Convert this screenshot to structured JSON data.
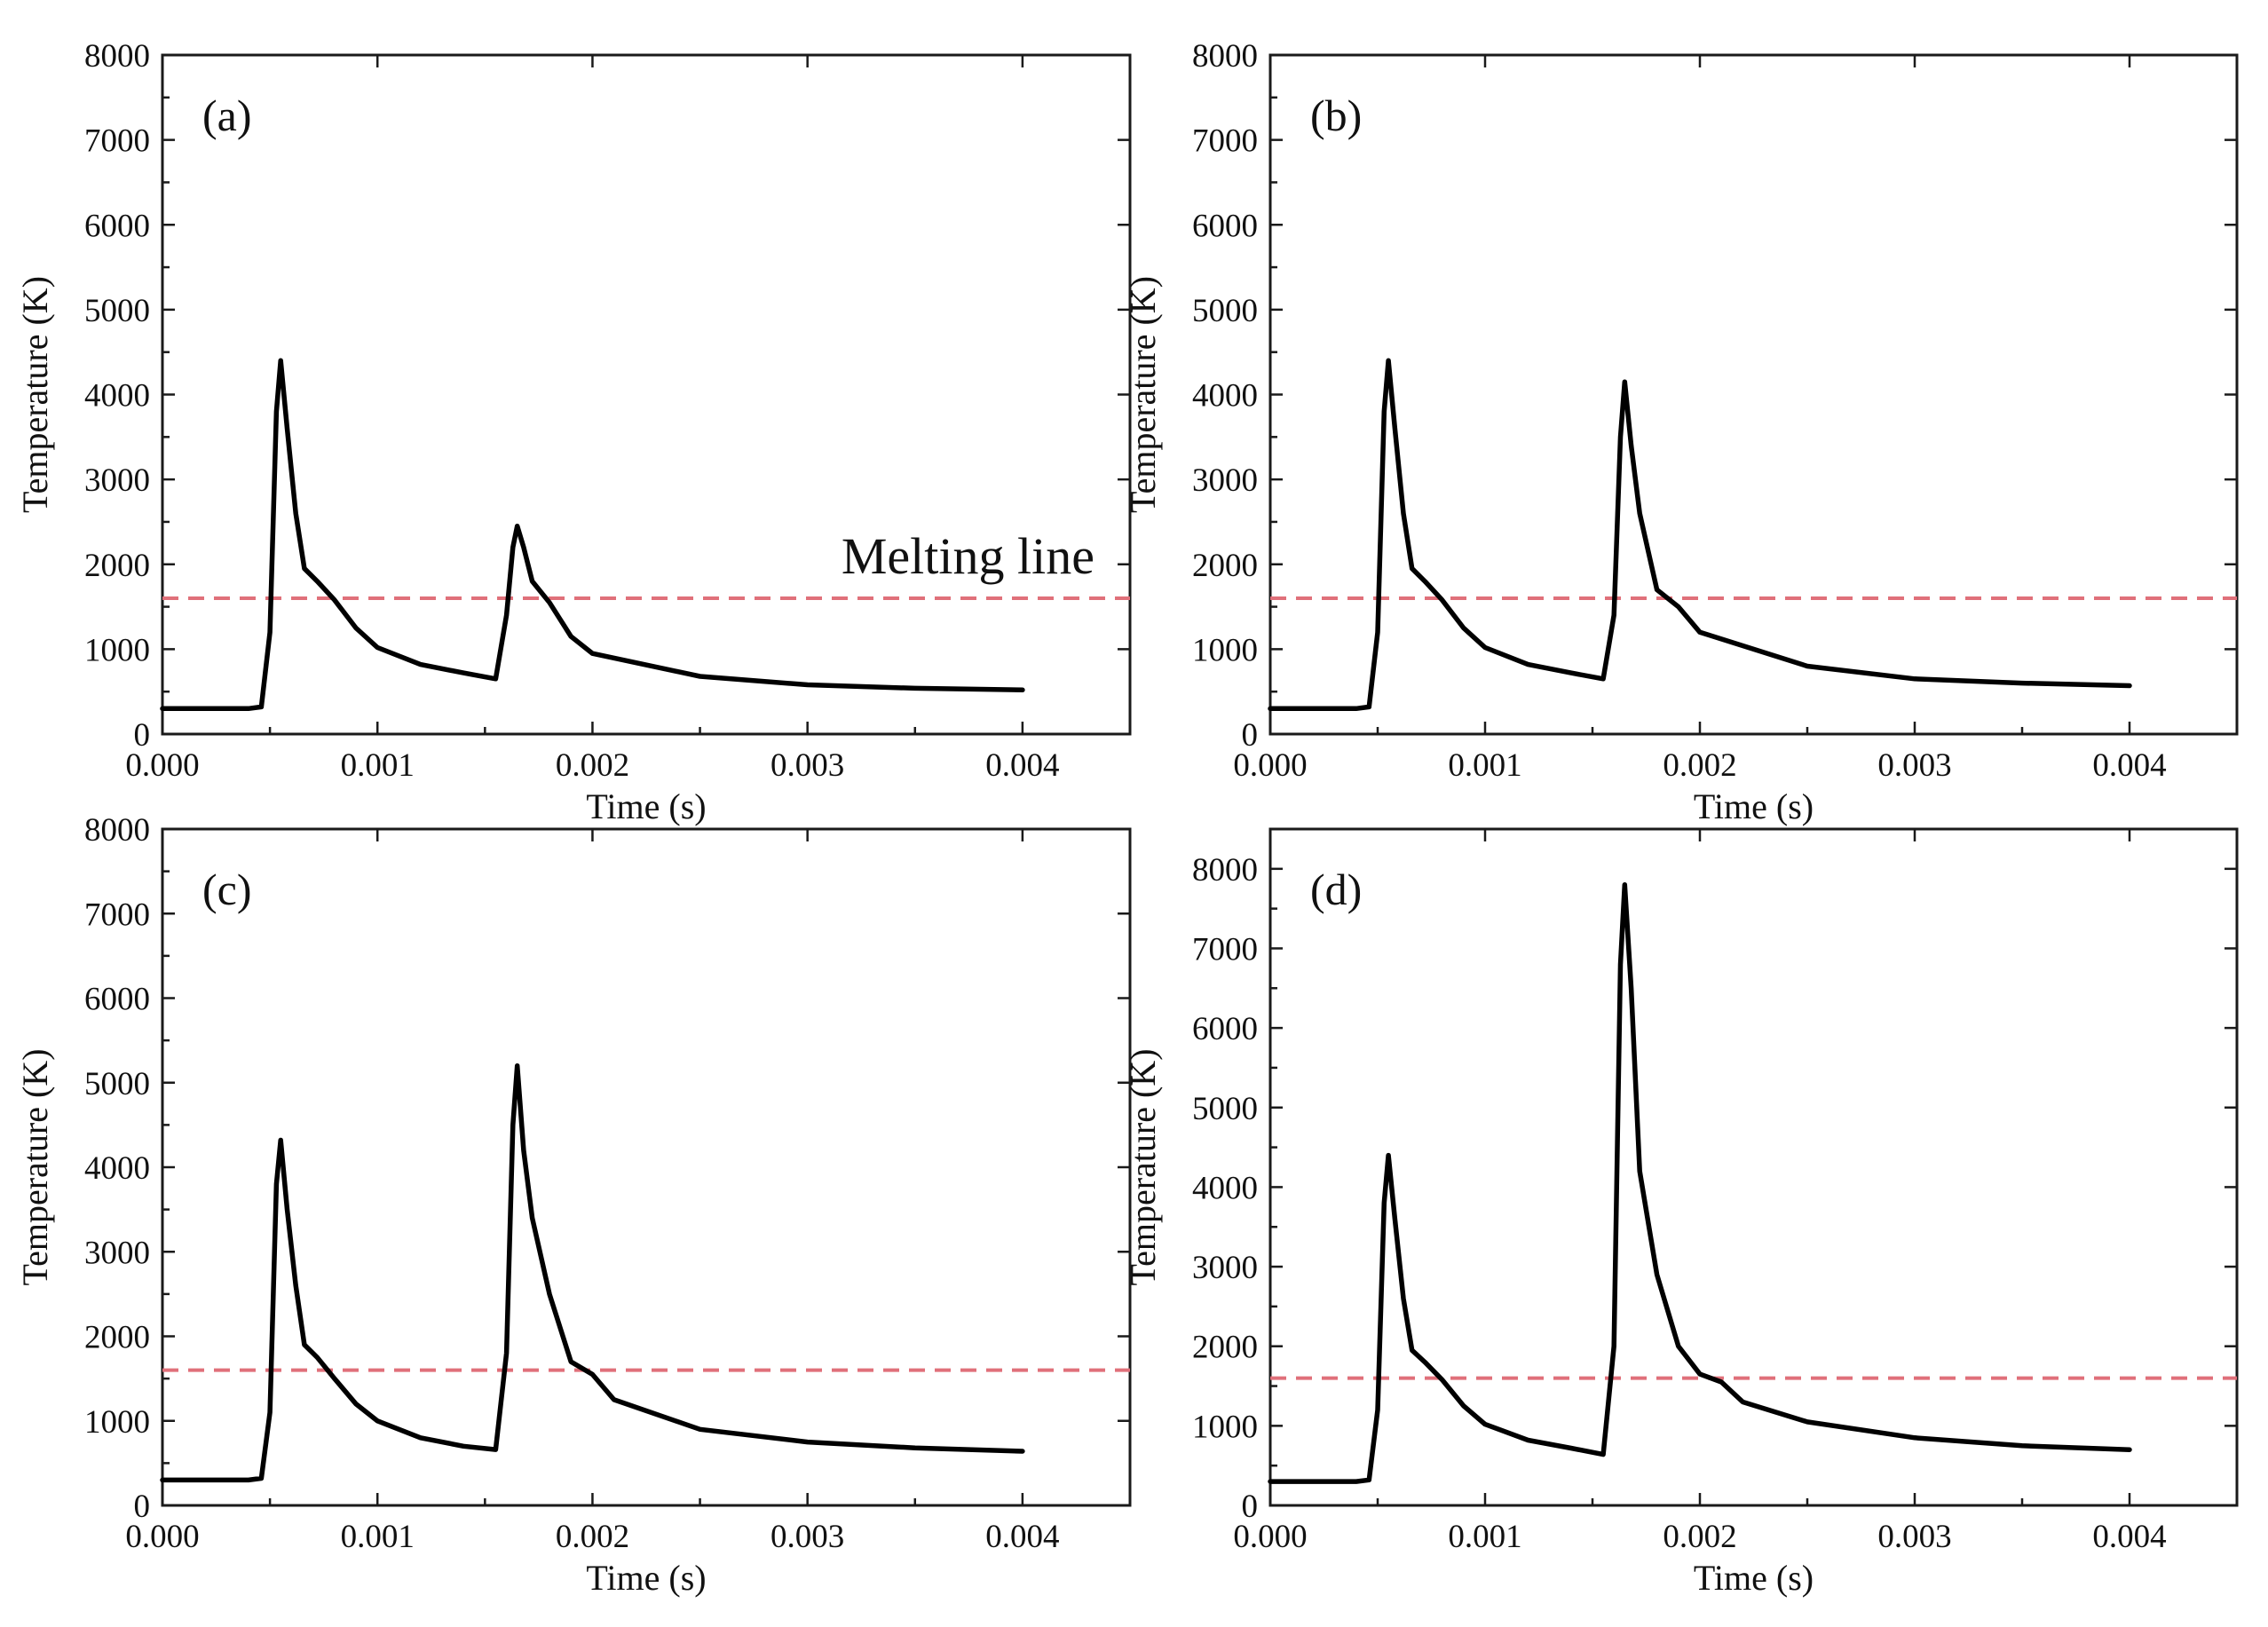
{
  "chart_data": [
    {
      "type": "line",
      "panel_label": "(a)",
      "xlabel": "Time (s)",
      "ylabel": "Temperature (K)",
      "xlim": [
        0,
        0.0045
      ],
      "ylim": [
        0,
        8000
      ],
      "xticks": [
        "0.000",
        "0.001",
        "0.002",
        "0.003",
        "0.004"
      ],
      "yticks": [
        "0",
        "1000",
        "2000",
        "3000",
        "4000",
        "5000",
        "6000",
        "7000",
        "8000"
      ],
      "reference_line": {
        "y": 1600,
        "color": "#e0707a",
        "style": "dashed"
      },
      "annotation": "Melting line",
      "series": [
        {
          "name": "temperature",
          "color": "#000000",
          "x": [
            0,
            0.0004,
            0.00046,
            0.0005,
            0.00053,
            0.00055,
            0.00058,
            0.00062,
            0.00066,
            0.00072,
            0.0008,
            0.0009,
            0.001,
            0.0012,
            0.0014,
            0.00155,
            0.0016,
            0.00163,
            0.00165,
            0.00168,
            0.00172,
            0.0018,
            0.0019,
            0.002,
            0.0025,
            0.003,
            0.0035,
            0.004
          ],
          "y": [
            300,
            300,
            320,
            1200,
            3800,
            4400,
            3600,
            2600,
            1950,
            1800,
            1580,
            1250,
            1020,
            820,
            720,
            650,
            1400,
            2200,
            2450,
            2200,
            1800,
            1550,
            1150,
            950,
            680,
            580,
            540,
            520
          ]
        }
      ]
    },
    {
      "type": "line",
      "panel_label": "(b)",
      "xlabel": "Time (s)",
      "ylabel": "Temperature (K)",
      "xlim": [
        0,
        0.0045
      ],
      "ylim": [
        0,
        8000
      ],
      "xticks": [
        "0.000",
        "0.001",
        "0.002",
        "0.003",
        "0.004"
      ],
      "yticks": [
        "0",
        "1000",
        "2000",
        "3000",
        "4000",
        "5000",
        "6000",
        "7000",
        "8000"
      ],
      "reference_line": {
        "y": 1600,
        "color": "#e0707a",
        "style": "dashed"
      },
      "series": [
        {
          "name": "temperature",
          "color": "#000000",
          "x": [
            0,
            0.0004,
            0.00046,
            0.0005,
            0.00053,
            0.00055,
            0.00058,
            0.00062,
            0.00066,
            0.00072,
            0.0008,
            0.0009,
            0.001,
            0.0012,
            0.0014,
            0.00155,
            0.0016,
            0.00163,
            0.00165,
            0.00168,
            0.00172,
            0.0018,
            0.0019,
            0.002,
            0.0025,
            0.003,
            0.0035,
            0.004
          ],
          "y": [
            300,
            300,
            320,
            1200,
            3800,
            4400,
            3600,
            2600,
            1950,
            1800,
            1580,
            1250,
            1020,
            820,
            720,
            650,
            1400,
            3500,
            4150,
            3400,
            2600,
            1700,
            1500,
            1200,
            800,
            650,
            600,
            570
          ]
        }
      ]
    },
    {
      "type": "line",
      "panel_label": "(c)",
      "xlabel": "Time (s)",
      "ylabel": "Temperature (K)",
      "xlim": [
        0,
        0.0045
      ],
      "ylim": [
        0,
        8000
      ],
      "xticks": [
        "0.000",
        "0.001",
        "0.002",
        "0.003",
        "0.004"
      ],
      "yticks": [
        "0",
        "1000",
        "2000",
        "3000",
        "4000",
        "5000",
        "6000",
        "7000",
        "8000"
      ],
      "reference_line": {
        "y": 1600,
        "color": "#e0707a",
        "style": "dashed"
      },
      "series": [
        {
          "name": "temperature",
          "color": "#000000",
          "x": [
            0,
            0.0004,
            0.00046,
            0.0005,
            0.00053,
            0.00055,
            0.00058,
            0.00062,
            0.00066,
            0.00072,
            0.0008,
            0.0009,
            0.001,
            0.0012,
            0.0014,
            0.00155,
            0.0016,
            0.00163,
            0.00165,
            0.00168,
            0.00172,
            0.0018,
            0.0019,
            0.002,
            0.0021,
            0.0025,
            0.003,
            0.0035,
            0.004
          ],
          "y": [
            300,
            300,
            320,
            1100,
            3800,
            4320,
            3500,
            2600,
            1900,
            1750,
            1500,
            1200,
            1000,
            800,
            700,
            660,
            1800,
            4500,
            5200,
            4200,
            3400,
            2500,
            1700,
            1550,
            1250,
            900,
            750,
            680,
            640
          ]
        }
      ]
    },
    {
      "type": "line",
      "panel_label": "(d)",
      "xlabel": "Time (s)",
      "ylabel": "Temperature (K)",
      "xlim": [
        0,
        0.0045
      ],
      "ylim": [
        0,
        8500
      ],
      "xticks": [
        "0.000",
        "0.001",
        "0.002",
        "0.003",
        "0.004"
      ],
      "yticks": [
        "0",
        "1000",
        "2000",
        "3000",
        "4000",
        "5000",
        "6000",
        "7000",
        "8000"
      ],
      "reference_line": {
        "y": 1600,
        "color": "#e0707a",
        "style": "dashed"
      },
      "series": [
        {
          "name": "temperature",
          "color": "#000000",
          "x": [
            0,
            0.0004,
            0.00046,
            0.0005,
            0.00053,
            0.00055,
            0.00058,
            0.00062,
            0.00066,
            0.00072,
            0.0008,
            0.0009,
            0.001,
            0.0012,
            0.0014,
            0.00155,
            0.0016,
            0.00163,
            0.00165,
            0.00168,
            0.00172,
            0.0018,
            0.0019,
            0.002,
            0.0021,
            0.0022,
            0.0025,
            0.003,
            0.0035,
            0.004
          ],
          "y": [
            300,
            300,
            320,
            1200,
            3800,
            4400,
            3600,
            2600,
            1950,
            1800,
            1580,
            1250,
            1020,
            820,
            720,
            640,
            2000,
            6800,
            7800,
            6500,
            4200,
            2900,
            2000,
            1650,
            1550,
            1300,
            1050,
            850,
            750,
            700
          ]
        }
      ]
    }
  ]
}
